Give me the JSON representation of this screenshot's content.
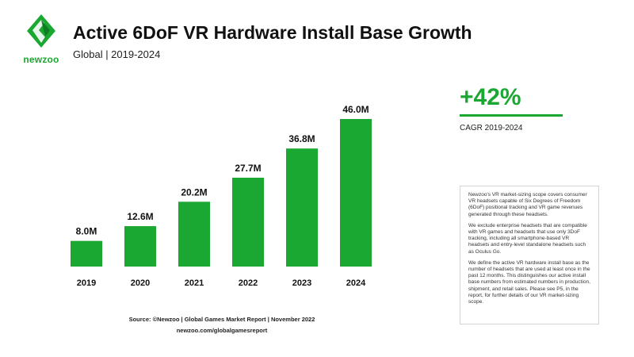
{
  "brand": {
    "logo_text": "newzoo",
    "accent": "#1aa832"
  },
  "header": {
    "title": "Active 6DoF VR Hardware Install Base Growth",
    "subtitle": "Global | 2019-2024"
  },
  "chart_data": {
    "type": "bar",
    "title": "Active 6DoF VR Hardware Install Base Growth",
    "categories": [
      "2019",
      "2020",
      "2021",
      "2022",
      "2023",
      "2024"
    ],
    "values": [
      8.0,
      12.6,
      20.2,
      27.7,
      36.8,
      46.0
    ],
    "value_labels": [
      "8.0M",
      "12.6M",
      "20.2M",
      "27.7M",
      "36.8M",
      "46.0M"
    ],
    "unit": "M",
    "ylim": [
      0,
      46
    ],
    "grid": false,
    "bar_color": "#1aa832"
  },
  "cagr": {
    "value": "+42%",
    "label": "CAGR 2019-2024"
  },
  "notes": [
    "Newzoo's VR market-sizing scope covers consumer VR headsets capable of Six Degrees of Freedom (6DoF) positional tracking and VR game revenues generated through these headsets.",
    "We exclude enterprise headsets that are compatible with VR games and headsets that use only 3DoF tracking, including all smartphone-based VR headsets and entry-level standalone headsets such as Oculus Go.",
    "We define the active VR hardware install base as the number of headsets that are used at least once in the past 12 months. This distinguishes our active install base numbers from estimated numbers in production, shipment, and retail sales. Please see P5, in the report, for further details of our VR market-sizing scope."
  ],
  "source": {
    "line1": "Source: ©Newzoo | Global Games Market Report | November 2022",
    "line2": "newzoo.com/globalgamesreport"
  }
}
